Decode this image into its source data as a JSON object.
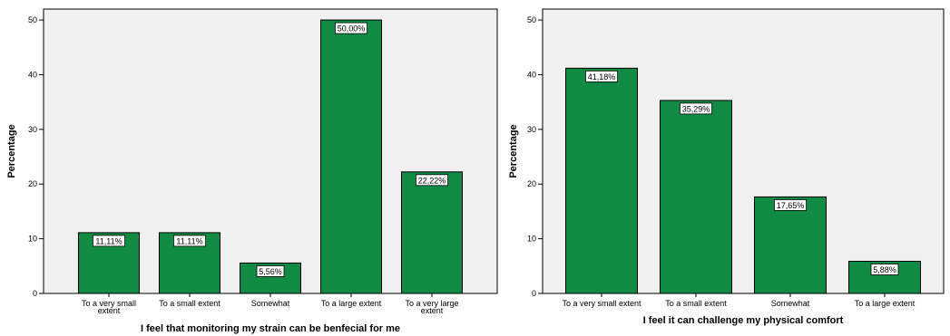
{
  "chart_data": [
    {
      "type": "bar",
      "categories": [
        "To a very small extent",
        "To a small extent",
        "Somewhat",
        "To a large extent",
        "To a very large extent"
      ],
      "category_lines": [
        [
          "To a very small",
          "extent"
        ],
        [
          "To a small extent"
        ],
        [
          "Somewhat"
        ],
        [
          "To a large extent"
        ],
        [
          "To a very large",
          "extent"
        ]
      ],
      "values": [
        11.11,
        11.11,
        5.56,
        50.0,
        22.22
      ],
      "value_labels": [
        "11,11%",
        "11,11%",
        "5,56%",
        "50,00%",
        "22,22%"
      ],
      "xlabel": "I feel that monitoring my strain can be benfecial for me",
      "ylabel": "Percentage",
      "ylim": [
        0,
        52
      ],
      "yticks": [
        "0",
        "10",
        "20",
        "30",
        "40",
        "50"
      ],
      "bar_color": "#118b44",
      "plot_background": "#f0f0f0",
      "grid": false
    },
    {
      "type": "bar",
      "categories": [
        "To a very small extent",
        "To a small extent",
        "Somewhat",
        "To a large extent"
      ],
      "category_lines": [
        [
          "To a very small extent"
        ],
        [
          "To a small extent"
        ],
        [
          "Somewhat"
        ],
        [
          "To a large extent"
        ]
      ],
      "values": [
        41.18,
        35.29,
        17.65,
        5.88
      ],
      "value_labels": [
        "41,18%",
        "35,29%",
        "17,65%",
        "5,88%"
      ],
      "xlabel": "I feel it can challenge my physical comfort",
      "ylabel": "Percentage",
      "ylim": [
        0,
        52
      ],
      "yticks": [
        "0",
        "10",
        "20",
        "30",
        "40",
        "50"
      ],
      "bar_color": "#118b44",
      "plot_background": "#f0f0f0",
      "grid": false
    }
  ]
}
